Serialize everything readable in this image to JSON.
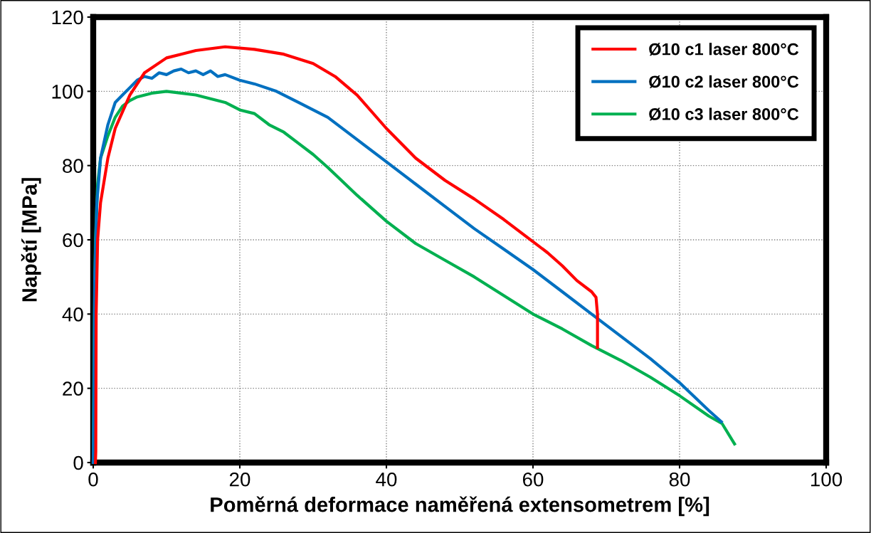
{
  "chart_data": {
    "type": "line",
    "xlabel": "Poměrná deformace naměřená extensometrem [%]",
    "ylabel": "Napětí [MPa]",
    "xlim": [
      0,
      100
    ],
    "xticks": [
      0,
      20,
      40,
      60,
      80,
      100
    ],
    "ylim": [
      0,
      120
    ],
    "yticks": [
      0,
      20,
      40,
      60,
      80,
      100,
      120
    ],
    "grid": true,
    "legend": "top right",
    "marker": "none",
    "line_style": "solid",
    "series": [
      {
        "name": "Ø10 c1 laser 800°C",
        "color": "#ff0000",
        "x": [
          0.3,
          0.35,
          0.4,
          0.6,
          1,
          2,
          3,
          5,
          7,
          10,
          14,
          18,
          22,
          26,
          30,
          33,
          36,
          40,
          44,
          48,
          52,
          56,
          60,
          62,
          64,
          66,
          68,
          68.6,
          68.8,
          68.8
        ],
        "values": [
          0,
          3,
          40,
          60,
          70,
          82,
          90,
          99,
          105,
          109,
          111,
          112,
          111.3,
          110,
          107.5,
          104,
          99,
          90,
          82,
          76,
          71,
          65.5,
          59.5,
          56.5,
          53,
          49,
          46,
          44.5,
          40,
          31
        ]
      },
      {
        "name": "Ø10 c2 laser 800°C",
        "color": "#0070c0",
        "x": [
          0,
          0.1,
          0.2,
          0.5,
          1,
          2,
          3,
          4,
          5,
          6,
          7,
          8,
          9,
          10,
          11,
          12,
          13,
          14,
          15,
          16,
          17,
          18,
          20,
          22,
          25,
          28,
          32,
          36,
          40,
          44,
          48,
          52,
          56,
          60,
          64,
          68,
          72,
          76,
          80,
          84,
          85.7
        ],
        "values": [
          0,
          20,
          50,
          70,
          82,
          91,
          97,
          99,
          101,
          103,
          104,
          103.5,
          105,
          104.5,
          105.5,
          106,
          105,
          105.5,
          104.5,
          105.5,
          104,
          104.5,
          103,
          102,
          100,
          97,
          93,
          87,
          81,
          75,
          69,
          63,
          57.5,
          52,
          46,
          40,
          34,
          28,
          21.5,
          14,
          11
        ]
      },
      {
        "name": "Ø10 c3 laser 800°C",
        "color": "#00b050",
        "x": [
          0,
          0.1,
          0.3,
          0.6,
          1,
          2,
          3,
          4,
          5,
          6,
          8,
          10,
          12,
          14,
          16,
          18,
          20,
          22,
          24,
          26,
          28,
          30,
          32,
          36,
          40,
          44,
          48,
          52,
          56,
          60,
          64,
          68,
          72,
          76,
          80,
          84,
          85.8,
          87.5
        ],
        "values": [
          0,
          30,
          60,
          75,
          82,
          88,
          93,
          96,
          97.5,
          98.5,
          99.5,
          100,
          99.5,
          99,
          98,
          97,
          95,
          94,
          91,
          89,
          86,
          83,
          79.5,
          72,
          65,
          59,
          54.5,
          50,
          45,
          40,
          36,
          31.5,
          27.5,
          23,
          18,
          12.5,
          10.5,
          5
        ]
      }
    ]
  }
}
